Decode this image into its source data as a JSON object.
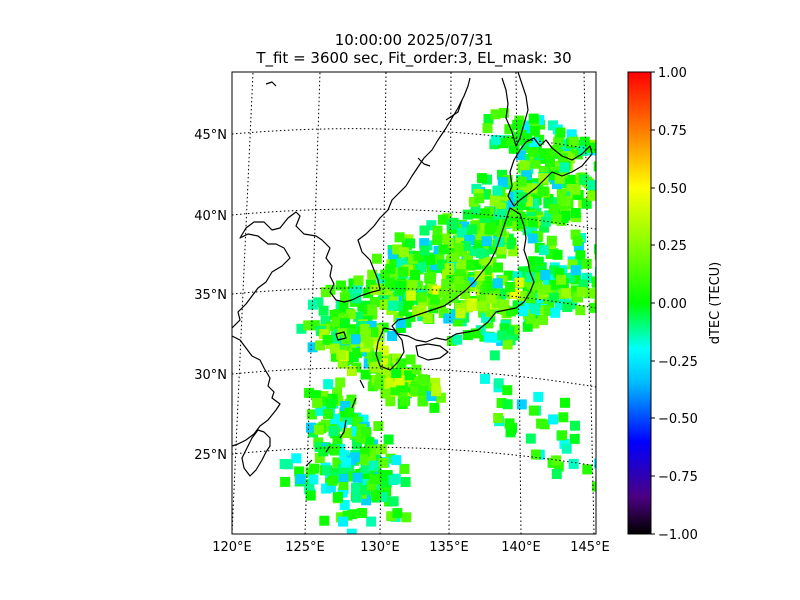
{
  "title": {
    "line1": "10:00:00 2025/07/31",
    "line2": "T_fit = 3600 sec, Fit_order:3, EL_mask: 30"
  },
  "map": {
    "projection": "conic",
    "lon_range": [
      120,
      145
    ],
    "lat_range": [
      20,
      49
    ],
    "lon_ticks": [
      "120°E",
      "125°E",
      "130°E",
      "135°E",
      "140°E",
      "145°E"
    ],
    "lat_ticks": [
      "25°N",
      "30°N",
      "35°N",
      "40°N",
      "45°N"
    ],
    "grid": "dotted"
  },
  "colorbar": {
    "label": "dTEC (TECU)",
    "min": -1.0,
    "max": 1.0,
    "tick_labels": [
      "1.00",
      "0.75",
      "0.50",
      "0.25",
      "0.00",
      "−0.25",
      "−0.50",
      "−0.75",
      "−1.00"
    ],
    "colormap": [
      "#000000",
      "#4b0082",
      "#0000ff",
      "#00bfff",
      "#00ffff",
      "#00ff7f",
      "#00ff00",
      "#80ff00",
      "#ffff00",
      "#ff8000",
      "#ff0000"
    ]
  },
  "colors": {
    "coast": "#000000",
    "grid": "#000000"
  }
}
